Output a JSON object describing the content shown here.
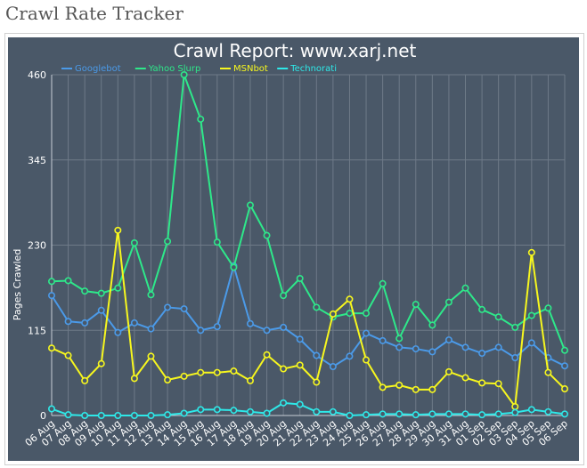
{
  "page": {
    "title": "Crawl Rate Tracker"
  },
  "colors": {
    "background": "#4a5868",
    "grid": "#6e7a88",
    "axis_text": "#ffffff"
  },
  "chart_data": {
    "type": "line",
    "title": "Crawl Report: www.xarj.net",
    "xlabel": "",
    "ylabel": "Pages Crawled",
    "ylim": [
      0,
      460
    ],
    "yticks": [
      0,
      115,
      230,
      345,
      460
    ],
    "grid": true,
    "legend_position": "top-left",
    "categories": [
      "06 Aug",
      "07 Aug",
      "08 Aug",
      "09 Aug",
      "10 Aug",
      "11 Aug",
      "12 Aug",
      "13 Aug",
      "14 Aug",
      "15 Aug",
      "16 Aug",
      "17 Aug",
      "18 Aug",
      "19 Aug",
      "20 Aug",
      "21 Aug",
      "22 Aug",
      "23 Aug",
      "24 Aug",
      "25 Aug",
      "26 Aug",
      "27 Aug",
      "28 Aug",
      "29 Aug",
      "30 Aug",
      "31 Aug",
      "01 Sep",
      "02 Sep",
      "03 Sep",
      "04 Sep",
      "05 Sep",
      "06 Sep"
    ],
    "series": [
      {
        "name": "Googlebot",
        "color": "#4b9ae8",
        "values": [
          162,
          127,
          125,
          142,
          112,
          125,
          117,
          146,
          144,
          115,
          120,
          202,
          124,
          115,
          119,
          103,
          81,
          66,
          80,
          111,
          101,
          92,
          90,
          86,
          102,
          92,
          84,
          92,
          78,
          98,
          78,
          67
        ]
      },
      {
        "name": "Yahoo Slurp",
        "color": "#2ee88a",
        "values": [
          181,
          182,
          168,
          165,
          172,
          233,
          163,
          235,
          460,
          400,
          234,
          200,
          284,
          243,
          162,
          185,
          146,
          133,
          138,
          138,
          178,
          104,
          150,
          122,
          153,
          172,
          143,
          133,
          119,
          135,
          145,
          88
        ]
      },
      {
        "name": "MSNbot",
        "color": "#f7f71e",
        "values": [
          91,
          81,
          47,
          70,
          250,
          50,
          80,
          48,
          53,
          58,
          58,
          60,
          47,
          82,
          63,
          68,
          45,
          137,
          157,
          75,
          38,
          41,
          35,
          35,
          59,
          51,
          44,
          43,
          12,
          220,
          58,
          36
        ]
      },
      {
        "name": "Technorati",
        "color": "#2ee8e8",
        "values": [
          9,
          1,
          0,
          0,
          0,
          0,
          0,
          1,
          3,
          8,
          8,
          7,
          5,
          3,
          17,
          15,
          5,
          5,
          0,
          1,
          2,
          2,
          1,
          2,
          2,
          2,
          1,
          2,
          4,
          8,
          5,
          2
        ]
      }
    ]
  }
}
